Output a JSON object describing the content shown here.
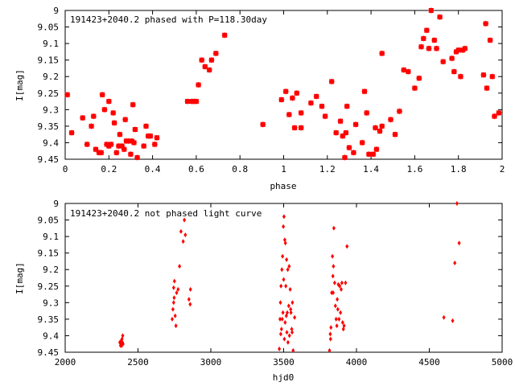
{
  "chart_data": [
    {
      "type": "scatter",
      "title": "191423+2040.2 phased with P=118.30day",
      "xlabel": "phase",
      "ylabel": "I[mag]",
      "xlim": [
        0,
        2
      ],
      "ylim": [
        9.45,
        9.0
      ],
      "y_inverted": true,
      "grid": false,
      "marker": "star",
      "color": "#ff0000",
      "xticks": [
        "0",
        "0.2",
        "0.4",
        "0.6",
        "0.8",
        "1",
        "1.2",
        "1.4",
        "1.6",
        "1.8",
        "2"
      ],
      "yticks": [
        "9",
        "9.05",
        "9.1",
        "9.15",
        "9.2",
        "9.25",
        "9.3",
        "9.35",
        "9.4",
        "9.45"
      ],
      "points": [
        [
          0.01,
          9.255
        ],
        [
          0.03,
          9.37
        ],
        [
          0.08,
          9.325
        ],
        [
          0.1,
          9.405
        ],
        [
          0.12,
          9.35
        ],
        [
          0.13,
          9.32
        ],
        [
          0.14,
          9.42
        ],
        [
          0.155,
          9.43
        ],
        [
          0.165,
          9.43
        ],
        [
          0.17,
          9.255
        ],
        [
          0.18,
          9.3
        ],
        [
          0.19,
          9.405
        ],
        [
          0.2,
          9.41
        ],
        [
          0.2,
          9.275
        ],
        [
          0.21,
          9.405
        ],
        [
          0.22,
          9.31
        ],
        [
          0.225,
          9.34
        ],
        [
          0.235,
          9.43
        ],
        [
          0.245,
          9.41
        ],
        [
          0.25,
          9.375
        ],
        [
          0.26,
          9.41
        ],
        [
          0.27,
          9.42
        ],
        [
          0.275,
          9.33
        ],
        [
          0.28,
          9.395
        ],
        [
          0.29,
          9.395
        ],
        [
          0.3,
          9.435
        ],
        [
          0.305,
          9.395
        ],
        [
          0.31,
          9.285
        ],
        [
          0.315,
          9.4
        ],
        [
          0.32,
          9.36
        ],
        [
          0.33,
          9.445
        ],
        [
          0.36,
          9.41
        ],
        [
          0.37,
          9.35
        ],
        [
          0.38,
          9.38
        ],
        [
          0.39,
          9.38
        ],
        [
          0.41,
          9.405
        ],
        [
          0.42,
          9.385
        ],
        [
          0.56,
          9.275
        ],
        [
          0.58,
          9.275
        ],
        [
          0.59,
          9.275
        ],
        [
          0.6,
          9.275
        ],
        [
          0.61,
          9.225
        ],
        [
          0.625,
          9.15
        ],
        [
          0.64,
          9.17
        ],
        [
          0.66,
          9.18
        ],
        [
          0.67,
          9.15
        ],
        [
          0.69,
          9.13
        ],
        [
          0.73,
          9.075
        ],
        [
          0.905,
          9.345
        ],
        [
          0.99,
          9.27
        ],
        [
          1.01,
          9.245
        ],
        [
          1.025,
          9.315
        ],
        [
          1.04,
          9.265
        ],
        [
          1.05,
          9.355
        ],
        [
          1.06,
          9.25
        ],
        [
          1.08,
          9.31
        ],
        [
          1.08,
          9.355
        ],
        [
          1.125,
          9.28
        ],
        [
          1.15,
          9.26
        ],
        [
          1.175,
          9.29
        ],
        [
          1.19,
          9.32
        ],
        [
          1.22,
          9.215
        ],
        [
          1.24,
          9.37
        ],
        [
          1.26,
          9.335
        ],
        [
          1.27,
          9.38
        ],
        [
          1.28,
          9.445
        ],
        [
          1.285,
          9.37
        ],
        [
          1.29,
          9.29
        ],
        [
          1.3,
          9.415
        ],
        [
          1.32,
          9.43
        ],
        [
          1.33,
          9.345
        ],
        [
          1.36,
          9.4
        ],
        [
          1.37,
          9.245
        ],
        [
          1.38,
          9.31
        ],
        [
          1.39,
          9.435
        ],
        [
          1.41,
          9.435
        ],
        [
          1.42,
          9.355
        ],
        [
          1.425,
          9.42
        ],
        [
          1.44,
          9.365
        ],
        [
          1.45,
          9.13
        ],
        [
          1.45,
          9.35
        ],
        [
          1.49,
          9.33
        ],
        [
          1.51,
          9.375
        ],
        [
          1.53,
          9.305
        ],
        [
          1.55,
          9.18
        ],
        [
          1.57,
          9.185
        ],
        [
          1.6,
          9.235
        ],
        [
          1.62,
          9.205
        ],
        [
          1.63,
          9.11
        ],
        [
          1.64,
          9.085
        ],
        [
          1.655,
          9.06
        ],
        [
          1.665,
          9.115
        ],
        [
          1.675,
          9.0
        ],
        [
          1.69,
          9.09
        ],
        [
          1.7,
          9.115
        ],
        [
          1.715,
          9.02
        ],
        [
          1.73,
          9.155
        ],
        [
          1.77,
          9.145
        ],
        [
          1.78,
          9.185
        ],
        [
          1.79,
          9.125
        ],
        [
          1.8,
          9.12
        ],
        [
          1.81,
          9.2
        ],
        [
          1.82,
          9.12
        ],
        [
          1.83,
          9.115
        ],
        [
          1.915,
          9.195
        ],
        [
          1.925,
          9.04
        ],
        [
          1.93,
          9.235
        ],
        [
          1.945,
          9.09
        ],
        [
          1.955,
          9.2
        ],
        [
          1.965,
          9.32
        ],
        [
          1.985,
          9.31
        ]
      ]
    },
    {
      "type": "scatter",
      "title": "191423+2040.2 not phased light curve",
      "xlabel": "hjd0",
      "ylabel": "I[mag]",
      "xlim": [
        2000,
        5000
      ],
      "ylim": [
        9.45,
        9.0
      ],
      "y_inverted": true,
      "grid": false,
      "marker": "diamond",
      "color": "#ff0000",
      "xticks": [
        "2000",
        "2500",
        "3000",
        "3500",
        "4000",
        "4500",
        "5000"
      ],
      "yticks": [
        "9",
        "9.05",
        "9.1",
        "9.15",
        "9.2",
        "9.25",
        "9.3",
        "9.35",
        "9.4",
        "9.45"
      ],
      "points": [
        [
          2375,
          9.42
        ],
        [
          2380,
          9.43
        ],
        [
          2382,
          9.425
        ],
        [
          2385,
          9.415
        ],
        [
          2388,
          9.43
        ],
        [
          2390,
          9.41
        ],
        [
          2393,
          9.42
        ],
        [
          2395,
          9.4
        ],
        [
          2397,
          9.425
        ],
        [
          2735,
          9.35
        ],
        [
          2740,
          9.32
        ],
        [
          2745,
          9.3
        ],
        [
          2745,
          9.255
        ],
        [
          2748,
          9.285
        ],
        [
          2750,
          9.235
        ],
        [
          2755,
          9.34
        ],
        [
          2760,
          9.37
        ],
        [
          2765,
          9.27
        ],
        [
          2775,
          9.26
        ],
        [
          2785,
          9.19
        ],
        [
          2795,
          9.085
        ],
        [
          2810,
          9.115
        ],
        [
          2818,
          9.05
        ],
        [
          2825,
          9.095
        ],
        [
          2850,
          9.29
        ],
        [
          2858,
          9.305
        ],
        [
          2860,
          9.26
        ],
        [
          3470,
          9.44
        ],
        [
          3475,
          9.35
        ],
        [
          3478,
          9.3
        ],
        [
          3480,
          9.395
        ],
        [
          3482,
          9.25
        ],
        [
          3485,
          9.38
        ],
        [
          3488,
          9.2
        ],
        [
          3490,
          9.35
        ],
        [
          3492,
          9.16
        ],
        [
          3495,
          9.33
        ],
        [
          3498,
          9.07
        ],
        [
          3500,
          9.23
        ],
        [
          3502,
          9.04
        ],
        [
          3505,
          9.41
        ],
        [
          3508,
          9.11
        ],
        [
          3510,
          9.36
        ],
        [
          3512,
          9.12
        ],
        [
          3515,
          9.25
        ],
        [
          3518,
          9.34
        ],
        [
          3520,
          9.17
        ],
        [
          3522,
          9.39
        ],
        [
          3525,
          9.33
        ],
        [
          3528,
          9.2
        ],
        [
          3530,
          9.42
        ],
        [
          3535,
          9.31
        ],
        [
          3538,
          9.19
        ],
        [
          3540,
          9.4
        ],
        [
          3545,
          9.26
        ],
        [
          3548,
          9.32
        ],
        [
          3550,
          9.33
        ],
        [
          3555,
          9.38
        ],
        [
          3558,
          9.39
        ],
        [
          3560,
          9.3
        ],
        [
          3565,
          9.445
        ],
        [
          3575,
          9.345
        ],
        [
          3815,
          9.445
        ],
        [
          3820,
          9.395
        ],
        [
          3822,
          9.41
        ],
        [
          3825,
          9.375
        ],
        [
          3830,
          9.27
        ],
        [
          3835,
          9.16
        ],
        [
          3838,
          9.22
        ],
        [
          3840,
          9.27
        ],
        [
          3842,
          9.19
        ],
        [
          3845,
          9.075
        ],
        [
          3850,
          9.24
        ],
        [
          3855,
          9.31
        ],
        [
          3860,
          9.35
        ],
        [
          3865,
          9.37
        ],
        [
          3868,
          9.29
        ],
        [
          3872,
          9.32
        ],
        [
          3875,
          9.245
        ],
        [
          3880,
          9.35
        ],
        [
          3885,
          9.25
        ],
        [
          3890,
          9.33
        ],
        [
          3895,
          9.26
        ],
        [
          3900,
          9.24
        ],
        [
          3905,
          9.36
        ],
        [
          3910,
          9.38
        ],
        [
          3915,
          9.37
        ],
        [
          3925,
          9.24
        ],
        [
          3935,
          9.13
        ],
        [
          4600,
          9.345
        ],
        [
          4660,
          9.355
        ],
        [
          4675,
          9.18
        ],
        [
          4690,
          9.0
        ],
        [
          4705,
          9.12
        ]
      ]
    }
  ]
}
